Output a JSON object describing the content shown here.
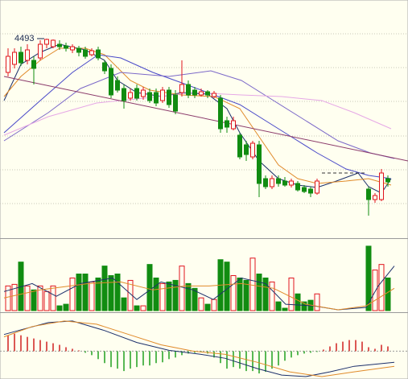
{
  "chart_data": [
    {
      "type": "candlestick",
      "annotation": "4493",
      "annotation_index": 6,
      "xlim": [
        -1.25,
        62.125
      ],
      "ylim": [
        3505,
        4685
      ],
      "ygrid": [
        4517,
        4349,
        4181,
        4009,
        3841,
        3673
      ],
      "up_color": "#e0141e",
      "down_color": "#118c11",
      "x": [
        0,
        1,
        2,
        3,
        4,
        5,
        6,
        7,
        8,
        9,
        10,
        11,
        12,
        13,
        14,
        15,
        16,
        17,
        18,
        19,
        20,
        21,
        22,
        23,
        24,
        25,
        26,
        27,
        28,
        29,
        30,
        31,
        32,
        33,
        34,
        35,
        36,
        37,
        38,
        39,
        40,
        41,
        42,
        43,
        44,
        45,
        46,
        47,
        48,
        56,
        57,
        58,
        59
      ],
      "open": [
        4325,
        4365,
        4425,
        4385,
        4385,
        4397,
        4465,
        4453,
        4465,
        4457,
        4437,
        4445,
        4437,
        4413,
        4437,
        4373,
        4345,
        4285,
        4245,
        4197,
        4245,
        4205,
        4225,
        4225,
        4185,
        4237,
        4213,
        4225,
        4265,
        4237,
        4213,
        4229,
        4205,
        4197,
        4085,
        4045,
        4013,
        3965,
        3905,
        3965,
        3797,
        3757,
        3797,
        3785,
        3765,
        3773,
        3753,
        3745,
        3725,
        3745,
        3693,
        3693,
        3797
      ],
      "high": [
        4445,
        4445,
        4453,
        4465,
        4405,
        4485,
        4493,
        4489,
        4485,
        4473,
        4465,
        4457,
        4453,
        4445,
        4453,
        4385,
        4365,
        4305,
        4265,
        4245,
        4265,
        4253,
        4245,
        4245,
        4253,
        4253,
        4237,
        4385,
        4285,
        4253,
        4245,
        4237,
        4233,
        4213,
        4105,
        4105,
        4025,
        3985,
        3985,
        3985,
        3813,
        3813,
        3813,
        3805,
        3797,
        3785,
        3765,
        3757,
        3797,
        3757,
        3725,
        3845,
        3813
      ],
      "low": [
        4305,
        4345,
        4357,
        4365,
        4265,
        4385,
        4445,
        4445,
        4437,
        4429,
        4421,
        4405,
        4393,
        4405,
        4385,
        4317,
        4197,
        4225,
        4145,
        4185,
        4185,
        4189,
        4173,
        4157,
        4173,
        4149,
        4117,
        4205,
        4197,
        4197,
        4205,
        4197,
        4197,
        4025,
        4025,
        4037,
        3893,
        3885,
        3893,
        3705,
        3745,
        3745,
        3757,
        3757,
        3753,
        3733,
        3725,
        3705,
        3717,
        3613,
        3677,
        3685,
        3757
      ],
      "close": [
        4405,
        4425,
        4373,
        4437,
        4345,
        4465,
        4489,
        4485,
        4453,
        4445,
        4453,
        4425,
        4405,
        4433,
        4397,
        4333,
        4213,
        4237,
        4185,
        4225,
        4197,
        4237,
        4185,
        4173,
        4237,
        4165,
        4133,
        4265,
        4213,
        4213,
        4229,
        4213,
        4221,
        4045,
        4053,
        4085,
        3905,
        3917,
        3973,
        3773,
        3757,
        3797,
        3773,
        3765,
        3785,
        3741,
        3733,
        3725,
        3785,
        3693,
        3713,
        3825,
        3781
      ],
      "lines": [
        {
          "color": "#1c2f6b",
          "x": [
            -0.625,
            2,
            5,
            8,
            12,
            15,
            17,
            20,
            24,
            27,
            31,
            34,
            36,
            39,
            42,
            45,
            48,
            51,
            54.375,
            56,
            58,
            59.5
          ],
          "values": [
            4185,
            4365,
            4425,
            4465,
            4437,
            4385,
            4285,
            4225,
            4205,
            4225,
            4217,
            4145,
            4025,
            3885,
            3797,
            3765,
            3753,
            3785,
            3825,
            3757,
            3725,
            3797
          ]
        },
        {
          "color": "#e08a2a",
          "x": [
            -0.625,
            2,
            5,
            8,
            12,
            15,
            19,
            22,
            27,
            32,
            36,
            39,
            42,
            45,
            48,
            52.5,
            56,
            59.5
          ],
          "values": [
            4205,
            4305,
            4385,
            4445,
            4445,
            4413,
            4285,
            4237,
            4213,
            4205,
            4145,
            4005,
            3865,
            3797,
            3773,
            3785,
            3797,
            3765
          ]
        },
        {
          "color": "#4848c8",
          "x": [
            -0.625,
            5,
            10,
            14,
            17.5,
            22.5,
            27,
            32,
            36,
            40,
            44,
            48,
            52.5,
            56,
            59.5
          ],
          "values": [
            4025,
            4185,
            4325,
            4413,
            4397,
            4325,
            4273,
            4213,
            4165,
            4085,
            4005,
            3925,
            3845,
            3813,
            3797
          ]
        },
        {
          "color": "#7b68c8",
          "x": [
            -0.625,
            6.25,
            11.25,
            17.5,
            25,
            31.5,
            36.25,
            41.25,
            46.25,
            51.25,
            56.25,
            60
          ],
          "values": [
            3985,
            4125,
            4245,
            4325,
            4305,
            4333,
            4285,
            4185,
            4085,
            3985,
            3925,
            3897
          ]
        },
        {
          "color": "#e6a8e6",
          "x": [
            -0.625,
            6.25,
            13.75,
            21.25,
            28.75,
            36.25,
            42.5,
            48.75,
            53.75,
            59.5
          ],
          "values": [
            4013,
            4105,
            4173,
            4197,
            4225,
            4213,
            4205,
            4185,
            4125,
            4045
          ]
        },
        {
          "color": "#8b3a6a",
          "x": [
            -0.625,
            62.125
          ],
          "values": [
            4305,
            3885
          ]
        },
        {
          "color": "#333333",
          "dashed": true,
          "x": [
            48.75,
            55.625
          ],
          "values": [
            3825,
            3825
          ]
        }
      ]
    },
    {
      "type": "volume",
      "ylim": [
        0,
        88
      ],
      "x": [
        0,
        1,
        2,
        3,
        4,
        5,
        6,
        7,
        8,
        9,
        10,
        11,
        12,
        13,
        14,
        15,
        16,
        17,
        18,
        19,
        20,
        21,
        22,
        23,
        24,
        25,
        26,
        27,
        28,
        29,
        30,
        31,
        32,
        33,
        34,
        35,
        36,
        37,
        38,
        39,
        40,
        41,
        42,
        43,
        44,
        45,
        46,
        47,
        48,
        56,
        57,
        58,
        59
      ],
      "values": [
        31,
        33,
        61,
        31,
        26,
        31,
        24,
        31,
        6,
        8,
        41,
        46,
        46,
        36,
        41,
        56,
        44,
        46,
        16,
        38,
        6,
        6,
        58,
        41,
        34,
        36,
        38,
        56,
        34,
        28,
        16,
        8,
        14,
        64,
        61,
        44,
        41,
        38,
        66,
        46,
        41,
        36,
        11,
        3,
        41,
        21,
        11,
        13,
        21,
        81,
        51,
        58,
        41
      ],
      "lines": [
        {
          "color": "#1c2f6b",
          "x": [
            -0.625,
            3.75,
            7.5,
            11.25,
            16.25,
            20,
            23.75,
            28.75,
            31.875,
            36.25,
            40,
            43.125,
            47.5,
            51.25,
            55.625,
            57.5,
            60
          ],
          "values": [
            24,
            34,
            18,
            34,
            41,
            14,
            36,
            26,
            14,
            41,
            34,
            8,
            6,
            1,
            4,
            31,
            56
          ]
        },
        {
          "color": "#e08a2a",
          "x": [
            -0.625,
            5,
            12.5,
            17.5,
            22.5,
            27.5,
            31.25,
            36.25,
            41.25,
            46.25,
            51.25,
            55.625,
            60
          ],
          "values": [
            16,
            26,
            34,
            36,
            26,
            31,
            31,
            34,
            28,
            8,
            1,
            6,
            28
          ]
        }
      ]
    },
    {
      "type": "macd",
      "ylim": [
        -34,
        46
      ],
      "up_color": "#d02020",
      "down_color": "#20a020",
      "x": [
        0,
        1,
        2,
        3,
        4,
        5,
        6,
        7,
        8,
        9,
        10,
        11,
        12,
        13,
        14,
        15,
        16,
        17,
        18,
        19,
        20,
        21,
        22,
        23,
        24,
        25,
        26,
        27,
        28,
        29,
        30,
        31,
        32,
        33,
        34,
        35,
        36,
        37,
        38,
        39,
        40,
        41,
        42,
        43,
        44,
        45,
        46,
        47,
        48,
        49,
        50,
        51,
        52,
        53,
        54,
        55,
        56,
        57,
        58,
        59
      ],
      "values": [
        20,
        22,
        20,
        18,
        16,
        14,
        12,
        10,
        8,
        5,
        3,
        1,
        -2,
        -5,
        -10,
        -15,
        -20,
        -22,
        -25,
        -22,
        -20,
        -18,
        -18,
        -15,
        -14,
        -10,
        -8,
        -5,
        -3,
        -2,
        -1,
        -3,
        -8,
        -15,
        -22,
        -20,
        -22,
        -25,
        -25,
        -28,
        -26,
        -22,
        -18,
        -12,
        -8,
        -5,
        -3,
        -2,
        -1,
        2,
        6,
        10,
        12,
        14,
        14,
        12,
        5,
        3,
        8,
        6
      ],
      "lines": [
        {
          "color": "#1c2f6b",
          "x": [
            -0.625,
            2.5,
            6.25,
            10,
            15,
            20,
            25,
            30,
            33.75,
            38.75,
            42.5,
            46.25,
            50,
            53.75,
            57.5,
            60
          ],
          "values": [
            21,
            28,
            36,
            38,
            26,
            11,
            1,
            -4,
            -9,
            -22,
            -30,
            -32,
            -26,
            -19,
            -16,
            -14
          ]
        },
        {
          "color": "#e08a2a",
          "x": [
            -0.625,
            3.75,
            8.75,
            13.75,
            18.75,
            23.75,
            28.75,
            33.75,
            38.75,
            43.75,
            48.75,
            53.75,
            60
          ],
          "values": [
            18,
            31,
            38,
            34,
            21,
            8,
            0,
            -4,
            -14,
            -26,
            -32,
            -26,
            -19
          ]
        }
      ]
    }
  ]
}
